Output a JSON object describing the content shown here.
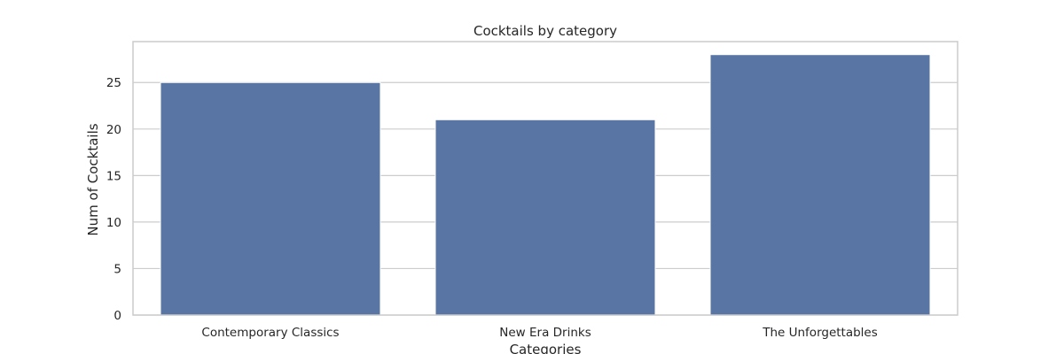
{
  "chart_data": {
    "type": "bar",
    "title": "Cocktails by category",
    "xlabel": "Categories",
    "ylabel": "Num of Cocktails",
    "categories": [
      "Contemporary Classics",
      "New Era Drinks",
      "The Unforgettables"
    ],
    "values": [
      25,
      21,
      28
    ],
    "ylim": [
      0,
      29.4
    ],
    "yticks": [
      0,
      5,
      10,
      15,
      20,
      25
    ],
    "grid": true,
    "legend": "none",
    "colors": {
      "bar": "#5975a4",
      "grid": "#cccccc",
      "spine": "#cccccc",
      "text": "#262626",
      "background": "#ffffff"
    }
  }
}
